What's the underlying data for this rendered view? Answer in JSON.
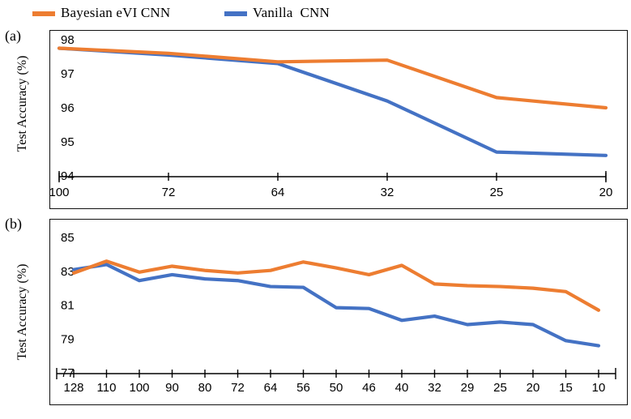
{
  "legend": {
    "items": [
      {
        "label": "Bayesian eVI CNN",
        "color": "#ED7D31"
      },
      {
        "label": "Vanilla  CNN",
        "color": "#4472C4"
      }
    ]
  },
  "chart_data": [
    {
      "type": "line",
      "panel_label": "(a)",
      "ylabel": "Test Accuracy (%)",
      "xlabel": "",
      "grid": false,
      "legend_position": "top",
      "categories": [
        "100",
        "72",
        "64",
        "32",
        "25",
        "20"
      ],
      "yticks": [
        "98",
        "97",
        "96",
        "95",
        "94"
      ],
      "ylim": [
        94,
        98
      ],
      "series": [
        {
          "name": "Bayesian eVI CNN",
          "color": "#ED7D31",
          "values": [
            97.75,
            97.6,
            97.35,
            97.4,
            96.3,
            96.0
          ]
        },
        {
          "name": "Vanilla CNN",
          "color": "#4472C4",
          "values": [
            97.75,
            97.55,
            97.3,
            96.2,
            94.7,
            94.6
          ]
        }
      ]
    },
    {
      "type": "line",
      "panel_label": "(b)",
      "ylabel": "Test Accuracy (%)",
      "xlabel": "",
      "grid": false,
      "legend_position": "top",
      "categories": [
        "128",
        "110",
        "100",
        "90",
        "80",
        "72",
        "64",
        "56",
        "50",
        "46",
        "40",
        "32",
        "29",
        "25",
        "20",
        "15",
        "10"
      ],
      "yticks": [
        "85",
        "83",
        "81",
        "79",
        "77"
      ],
      "ylim": [
        77,
        85
      ],
      "series": [
        {
          "name": "Bayesian eVI CNN",
          "color": "#ED7D31",
          "values": [
            82.9,
            83.6,
            82.95,
            83.3,
            83.05,
            82.9,
            83.05,
            83.55,
            83.2,
            82.8,
            83.35,
            82.25,
            82.15,
            82.1,
            82.0,
            81.8,
            80.7
          ]
        },
        {
          "name": "Vanilla CNN",
          "color": "#4472C4",
          "values": [
            83.1,
            83.4,
            82.45,
            82.8,
            82.55,
            82.45,
            82.1,
            82.05,
            80.85,
            80.8,
            80.1,
            80.35,
            79.85,
            80.0,
            79.85,
            78.9,
            78.6
          ]
        }
      ]
    }
  ]
}
